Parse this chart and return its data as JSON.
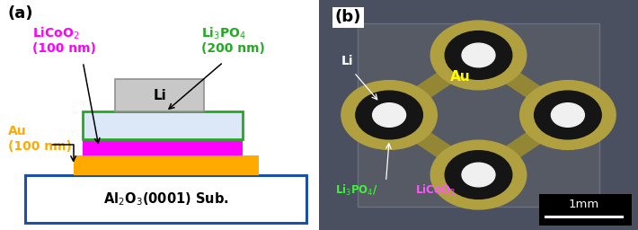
{
  "fig_width": 7.1,
  "fig_height": 2.56,
  "bg_color": "#ffffff",
  "panel_a_label": "(a)",
  "panel_b_label": "(b)",
  "sub_label_main": "Al",
  "sub_label_sub2": "2",
  "sub_label_rest": "O",
  "sub_label_sub3": "3",
  "sub_label_suffix": "(0001) Sub.",
  "sub_color": "#ffffff",
  "sub_edgecolor": "#1a4faa",
  "sub_lw": 2.2,
  "au_color": "#ffaa00",
  "licoo2_color": "#ff00ff",
  "li3po4_color": "#dce8f8",
  "li3po4_edgecolor": "#22aa22",
  "li_color": "#c8c8c8",
  "li_edgecolor": "#909090",
  "au_text_color": "#ffaa00",
  "licoo2_text_color": "#ff00ff",
  "li3po4_text_color": "#22aa22",
  "black": "#000000",
  "white": "#ffffff"
}
